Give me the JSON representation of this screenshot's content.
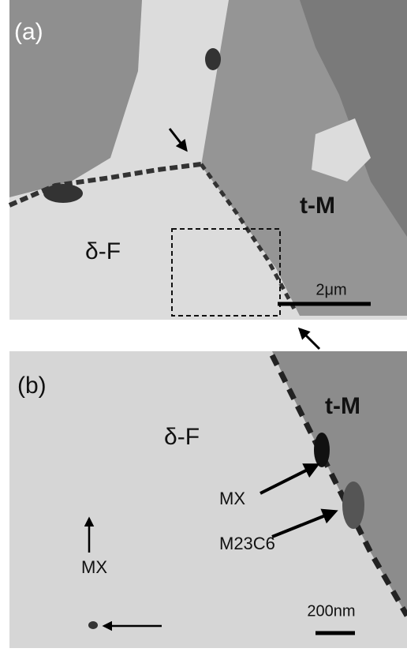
{
  "panels": [
    {
      "label": "(a)",
      "phases": [
        "t-M",
        "δ-F"
      ],
      "scale_bar": "2μm"
    },
    {
      "label": "(b)",
      "phases": [
        "δ-F",
        "t-M"
      ],
      "annotations": [
        "MX",
        "M23C6",
        "MX"
      ],
      "scale_bar": "200nm"
    }
  ]
}
